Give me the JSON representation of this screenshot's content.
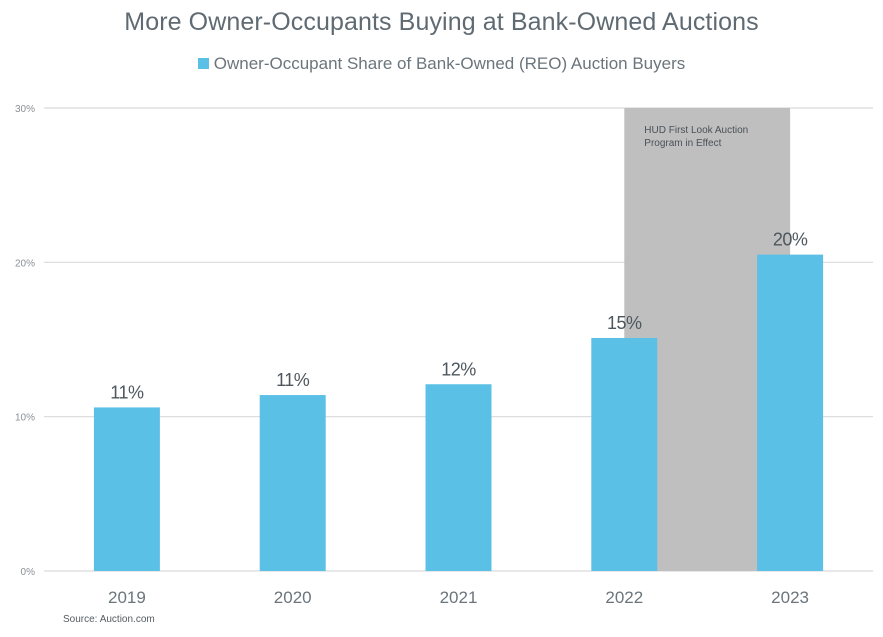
{
  "chart_data": {
    "type": "bar",
    "title": "More Owner-Occupants Buying at Bank-Owned Auctions",
    "legend": [
      {
        "label": "Owner-Occupant Share of Bank-Owned (REO) Auction Buyers",
        "color": "#5bc0e6"
      }
    ],
    "legend_position": "top-center",
    "categories": [
      "2019",
      "2020",
      "2021",
      "2022",
      "2023"
    ],
    "values": [
      10.6,
      11.4,
      12.1,
      15.1,
      20.5
    ],
    "data_labels": [
      "11%",
      "11%",
      "12%",
      "15%",
      "20%"
    ],
    "xlabel": "",
    "ylabel": "",
    "ylim": [
      0,
      30
    ],
    "yticks": [
      0,
      10,
      20,
      30
    ],
    "ytick_labels": [
      "0%",
      "10%",
      "20%",
      "30%"
    ],
    "grid": true,
    "annotation": {
      "text_lines": [
        "HUD First Look Auction",
        "Program in Effect"
      ],
      "shaded_from_category": "2022",
      "shaded_to_category": "2023",
      "color": "#bfbfbf"
    },
    "source": "Source: Auction.com"
  },
  "colors": {
    "bar": "#5bc0e6",
    "shade": "#bfbfbf",
    "grid": "#d9d9d9",
    "text": "#5f6a72"
  }
}
